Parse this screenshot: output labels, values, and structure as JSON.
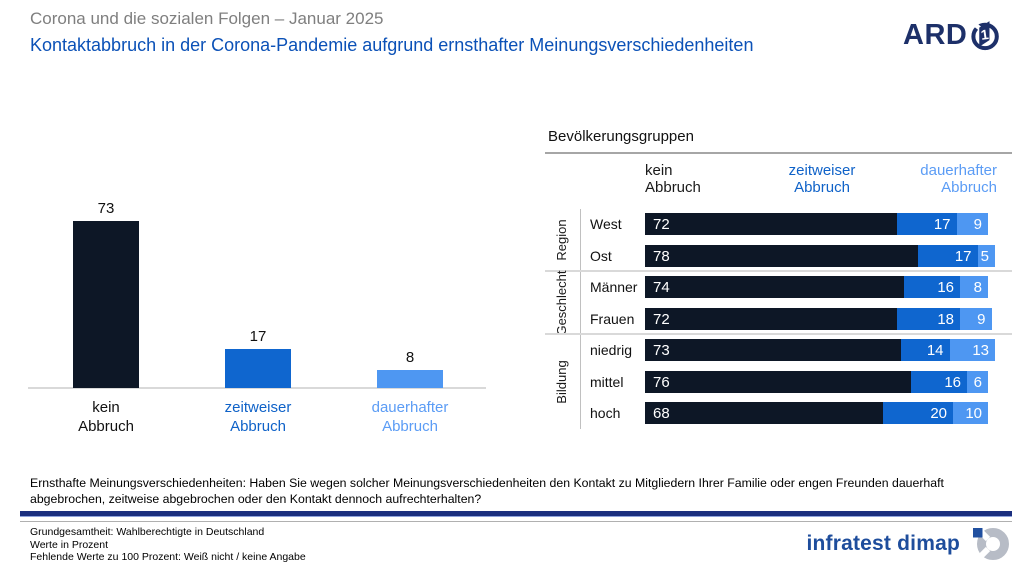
{
  "header": {
    "pretitle": "Corona und die sozialen Folgen – Januar 2025",
    "title": "Kontaktabbruch in der Corona-Pandemie aufgrund ernsthafter Meinungsverschiedenheiten",
    "broadcaster": "ARD"
  },
  "colors": {
    "none_dark": "#0d1726",
    "temporary_blue": "#0f66cf",
    "permanent_lightblue": "#4e97f2",
    "label_black": "#111111",
    "label_midblue": "#0f62c8",
    "label_lightblue": "#5b9cf5",
    "ard_navy": "#1d3069",
    "dimap_blue": "#1e4d9c"
  },
  "chart_data": [
    {
      "type": "bar",
      "title": "",
      "categories": [
        "kein Abbruch",
        "zeitweiser Abbruch",
        "dauerhafter Abbruch"
      ],
      "values": [
        73,
        17,
        8
      ],
      "bar_colors": [
        "#0d1726",
        "#0f66cf",
        "#4e97f2"
      ],
      "label_colors": [
        "#111111",
        "#0f62c8",
        "#5b9cf5"
      ],
      "ylim": [
        0,
        80
      ],
      "grid": false,
      "data_labels": true
    },
    {
      "type": "bar",
      "variant": "horizontal-stacked",
      "title": "Bevölkerungsgruppen",
      "legend": [
        "kein Abbruch",
        "zeitweiser Abbruch",
        "dauerhafter Abbruch"
      ],
      "legend_colors": [
        "#1a1a1a",
        "#0f62c8",
        "#5b9cf5"
      ],
      "series_colors": [
        "#0d1726",
        "#0f66cf",
        "#4e97f2"
      ],
      "xlim": [
        0,
        100
      ],
      "groups": [
        {
          "label": "Region",
          "rows": [
            {
              "label": "West",
              "values": [
                72,
                17,
                9
              ]
            },
            {
              "label": "Ost",
              "values": [
                78,
                17,
                5
              ]
            }
          ]
        },
        {
          "label": "Geschlecht",
          "rows": [
            {
              "label": "Männer",
              "values": [
                74,
                16,
                8
              ]
            },
            {
              "label": "Frauen",
              "values": [
                72,
                18,
                9
              ]
            }
          ]
        },
        {
          "label": "Bildung",
          "rows": [
            {
              "label": "niedrig",
              "values": [
                73,
                14,
                13
              ]
            },
            {
              "label": "mittel",
              "values": [
                76,
                16,
                6
              ]
            },
            {
              "label": "hoch",
              "values": [
                68,
                20,
                10
              ]
            }
          ]
        }
      ]
    }
  ],
  "question": "Ernsthafte Meinungsverschiedenheiten: Haben Sie wegen solcher Meinungsverschiedenheiten den Kontakt zu Mitgliedern Ihrer Familie oder engen Freunden dauerhaft abgebrochen, zeitweise abgebrochen oder den Kontakt dennoch aufrechterhalten?",
  "footer": {
    "lines": [
      "Grundgesamtheit: Wahlberechtigte in Deutschland",
      "Werte in Prozent",
      "Fehlende Werte zu 100 Prozent: Weiß nicht / keine Angabe"
    ],
    "institute": "infratest dimap"
  }
}
